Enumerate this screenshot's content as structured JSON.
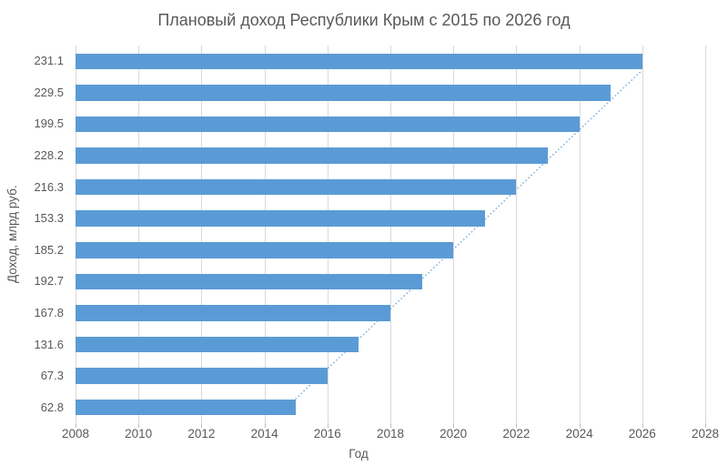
{
  "chart_data": {
    "type": "bar",
    "orientation": "horizontal",
    "title": "Плановый доход Республики Крым с 2015 по 2026 год",
    "xlabel": "Год",
    "ylabel": "Доход, млрд руб.",
    "categories": [
      "231.1",
      "229.5",
      "199.5",
      "228.2",
      "216.3",
      "153.3",
      "185.2",
      "192.7",
      "167.8",
      "131.6",
      "67.3",
      "62.8"
    ],
    "values": [
      2026,
      2025,
      2024,
      2023,
      2022,
      2021,
      2020,
      2019,
      2018,
      2017,
      2016,
      2015
    ],
    "xlim": [
      2008,
      2028
    ],
    "xticks": [
      2008,
      2010,
      2012,
      2014,
      2016,
      2018,
      2020,
      2022,
      2024,
      2026,
      2028
    ],
    "grid": "vertical",
    "legend": "none",
    "trendline": {
      "style": "dotted",
      "from_year": 2015,
      "to_year": 2026
    },
    "colors": {
      "bar": "#5B9BD5",
      "trendline": "#5B9BD5",
      "gridline": "#D9D9D9",
      "tick": "#BFBFBF",
      "text": "#595959"
    }
  }
}
